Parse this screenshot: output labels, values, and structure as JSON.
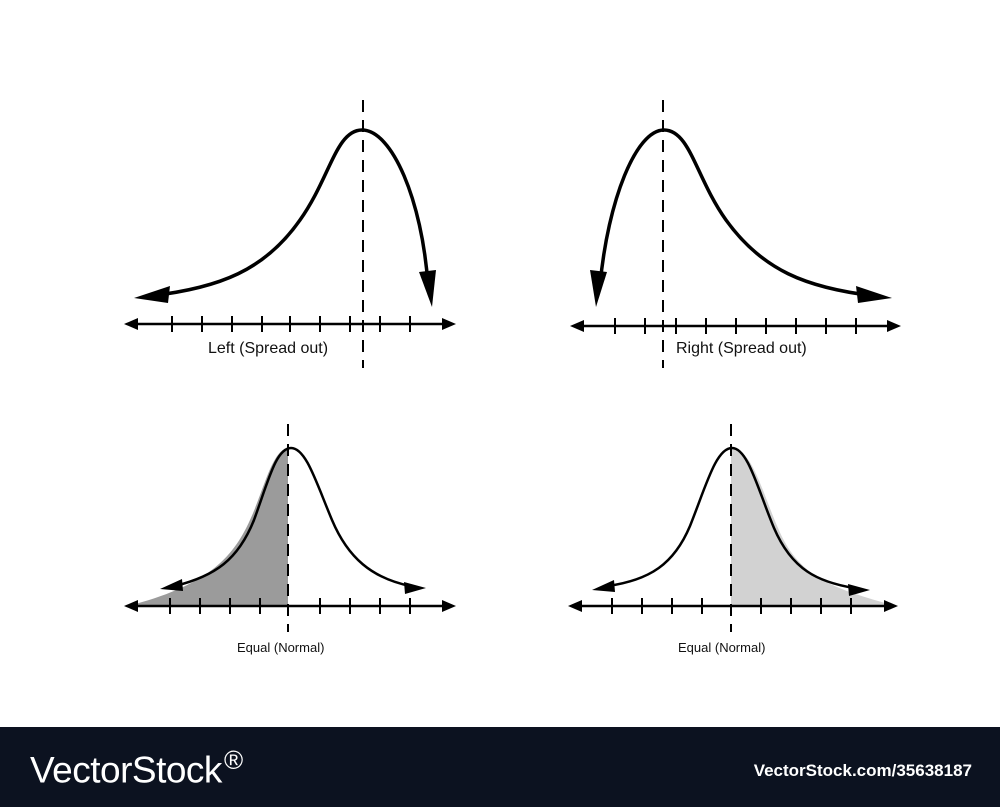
{
  "panels": [
    {
      "id": "left-skew",
      "caption": "Left (Spread out)",
      "skew": "left",
      "shading": "none"
    },
    {
      "id": "right-skew",
      "caption": "Right (Spread out)",
      "skew": "right",
      "shading": "none"
    },
    {
      "id": "normal-left-shaded",
      "caption": "Equal (Normal)",
      "skew": "none",
      "shading": "left-half"
    },
    {
      "id": "normal-right-shaded",
      "caption": "Equal (Normal)",
      "skew": "none",
      "shading": "right-half"
    }
  ],
  "colors": {
    "line": "#000000",
    "shade_dark": "#9b9b9b",
    "shade_light": "#d2d2d2",
    "footer_bg": "#0c1220"
  },
  "footer": {
    "brand": "VectorStock",
    "brand_mark": "®",
    "vector_id": "VectorStock.com/35638187"
  }
}
